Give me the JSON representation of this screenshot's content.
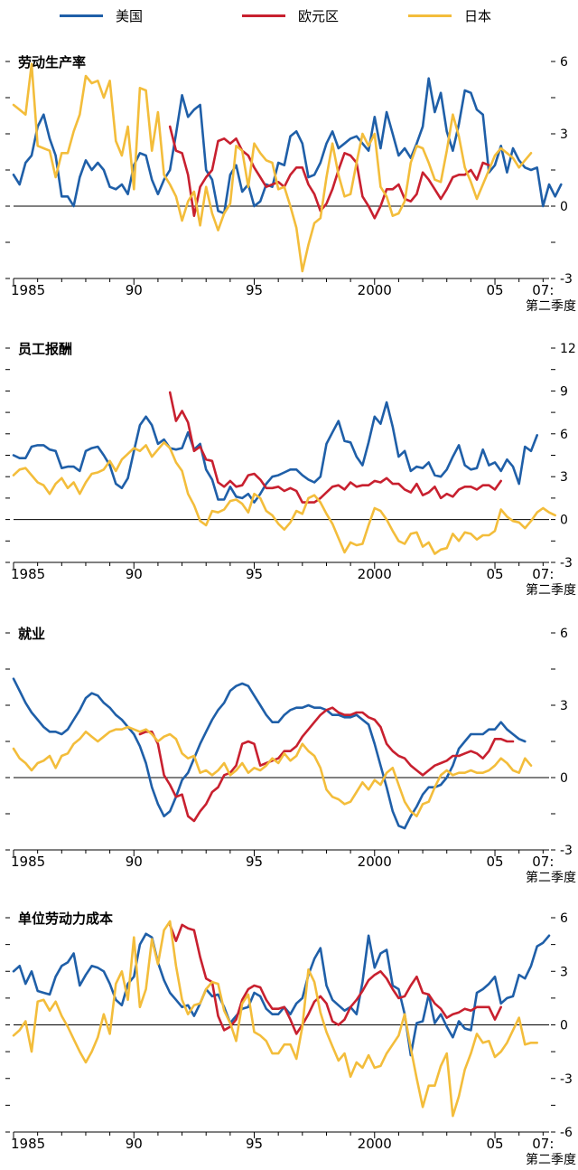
{
  "legend": [
    {
      "label": "美国",
      "color": "#1f5fa8"
    },
    {
      "label": "欧元区",
      "color": "#c8202f"
    },
    {
      "label": "日本",
      "color": "#f3bd3b"
    }
  ],
  "x_tick_labels": [
    "1985",
    "90",
    "95",
    "2000",
    "05",
    "07:"
  ],
  "x_end_note": "第二季度",
  "chart_data": [
    {
      "type": "line",
      "title": "劳动生产率",
      "ylim": [
        -3,
        6
      ],
      "y_tick_labels": [
        "6",
        "3",
        "0",
        "-3"
      ],
      "x_start": 1985.0,
      "x_step": 0.25,
      "series": [
        {
          "name": "美国",
          "start": 1985.0,
          "values": [
            1.3,
            0.9,
            1.8,
            2.1,
            3.3,
            3.8,
            2.8,
            2.1,
            0.4,
            0.4,
            0.0,
            1.2,
            1.9,
            1.5,
            1.8,
            1.5,
            0.8,
            0.7,
            0.9,
            0.5,
            1.7,
            2.2,
            2.1,
            1.1,
            0.5,
            1.1,
            1.5,
            3.0,
            4.6,
            3.7,
            4.0,
            4.2,
            1.5,
            1.1,
            -0.2,
            -0.3,
            1.3,
            1.7,
            0.6,
            0.9,
            0.0,
            0.2,
            0.9,
            0.8,
            1.8,
            1.7,
            2.9,
            3.1,
            2.6,
            1.2,
            1.3,
            1.8,
            2.6,
            3.1,
            2.4,
            2.6,
            2.8,
            2.9,
            2.6,
            2.3,
            3.7,
            2.4,
            3.9,
            3.0,
            2.1,
            2.4,
            2.0,
            2.6,
            3.3,
            5.3,
            3.9,
            4.7,
            3.1,
            2.3,
            3.4,
            4.8,
            4.7,
            4.0,
            3.8,
            1.4,
            1.7,
            2.5,
            1.4,
            2.4,
            1.9,
            1.6,
            1.5,
            1.6,
            0.0,
            0.9,
            0.4,
            0.9
          ]
        },
        {
          "name": "欧元区",
          "start": 1991.5,
          "values": [
            3.3,
            2.3,
            2.2,
            1.3,
            -0.4,
            0.8,
            1.2,
            1.5,
            2.7,
            2.8,
            2.6,
            2.8,
            2.3,
            2.1,
            1.6,
            1.2,
            0.8,
            0.9,
            1.0,
            0.8,
            1.3,
            1.6,
            1.6,
            0.9,
            0.5,
            -0.2,
            0.1,
            0.7,
            1.5,
            2.2,
            2.1,
            1.8,
            0.4,
            0.0,
            -0.5,
            0.0,
            0.7,
            0.7,
            0.9,
            0.3,
            0.2,
            0.5,
            1.4,
            1.1,
            0.7,
            0.3,
            0.7,
            1.2,
            1.3,
            1.3,
            1.5,
            1.1,
            1.8,
            1.7
          ]
        },
        {
          "name": "日本",
          "start": 1985.0,
          "values": [
            4.2,
            4.0,
            3.8,
            5.9,
            2.5,
            2.4,
            2.3,
            1.2,
            2.2,
            2.2,
            3.1,
            3.8,
            5.4,
            5.1,
            5.2,
            4.5,
            5.2,
            2.7,
            2.1,
            3.3,
            0.7,
            4.9,
            4.8,
            2.3,
            3.9,
            1.3,
            0.9,
            0.4,
            -0.6,
            0.2,
            0.6,
            -0.8,
            0.8,
            -0.3,
            -1.0,
            -0.3,
            0.1,
            2.5,
            2.3,
            0.8,
            2.6,
            2.2,
            1.9,
            1.8,
            0.7,
            0.8,
            0.0,
            -0.9,
            -2.7,
            -1.6,
            -0.7,
            -0.5,
            1.2,
            2.6,
            1.3,
            0.4,
            0.5,
            1.8,
            3.0,
            2.5,
            3.0,
            0.8,
            0.4,
            -0.4,
            -0.3,
            0.2,
            1.8,
            2.5,
            2.4,
            1.8,
            1.1,
            1.0,
            2.3,
            3.8,
            2.9,
            1.6,
            1.0,
            0.3,
            0.9,
            1.5,
            2.1,
            2.4,
            2.2,
            2.0,
            1.6,
            1.9,
            2.2
          ]
        }
      ]
    },
    {
      "type": "line",
      "title": "员工报酬",
      "ylim": [
        -3,
        12
      ],
      "y_tick_labels": [
        "12",
        "9",
        "6",
        "3",
        "0",
        "-3"
      ],
      "x_start": 1985.0,
      "x_step": 0.25,
      "series": [
        {
          "name": "美国",
          "start": 1985.0,
          "values": [
            4.5,
            4.3,
            4.3,
            5.1,
            5.2,
            5.2,
            4.9,
            4.8,
            3.6,
            3.7,
            3.7,
            3.4,
            4.8,
            5.0,
            5.1,
            4.5,
            3.8,
            2.5,
            2.2,
            2.9,
            4.8,
            6.6,
            7.2,
            6.6,
            5.3,
            5.6,
            5.0,
            4.9,
            5.0,
            6.1,
            4.9,
            5.3,
            3.5,
            2.8,
            1.4,
            1.4,
            2.3,
            1.6,
            1.5,
            1.8,
            1.2,
            1.8,
            2.5,
            3.0,
            3.1,
            3.3,
            3.5,
            3.5,
            3.1,
            2.8,
            2.6,
            3.0,
            5.3,
            6.1,
            6.9,
            5.5,
            5.4,
            4.4,
            3.8,
            5.4,
            7.2,
            6.7,
            8.2,
            6.5,
            4.4,
            4.8,
            3.4,
            3.7,
            3.6,
            4.0,
            3.1,
            3.0,
            3.5,
            4.4,
            5.2,
            3.8,
            3.5,
            3.6,
            4.9,
            3.8,
            4.0,
            3.4,
            4.2,
            3.7,
            2.5,
            5.1,
            4.8,
            5.9
          ]
        },
        {
          "name": "欧元区",
          "start": 1991.5,
          "values": [
            8.9,
            6.9,
            7.6,
            6.8,
            4.8,
            5.1,
            4.2,
            4.1,
            2.6,
            2.3,
            2.7,
            2.3,
            2.4,
            3.1,
            3.2,
            2.8,
            2.2,
            2.2,
            2.3,
            2.0,
            2.2,
            2.0,
            1.2,
            1.2,
            1.2,
            1.5,
            1.9,
            2.3,
            2.4,
            2.1,
            2.6,
            2.3,
            2.4,
            2.4,
            2.7,
            2.6,
            2.9,
            2.5,
            2.5,
            2.1,
            1.9,
            2.5,
            1.7,
            1.9,
            2.3,
            1.5,
            1.8,
            1.6,
            2.1,
            2.3,
            2.3,
            2.1,
            2.4,
            2.4,
            2.1,
            2.7
          ]
        },
        {
          "name": "日本",
          "start": 1985.0,
          "values": [
            3.1,
            3.5,
            3.6,
            3.1,
            2.6,
            2.4,
            1.8,
            2.5,
            2.9,
            2.2,
            2.6,
            1.8,
            2.6,
            3.2,
            3.3,
            3.5,
            4.1,
            3.4,
            4.2,
            4.6,
            5.0,
            4.8,
            5.2,
            4.4,
            4.9,
            5.4,
            5.0,
            4.0,
            3.4,
            1.8,
            1.0,
            -0.1,
            -0.4,
            0.6,
            0.5,
            0.7,
            1.3,
            1.4,
            1.1,
            0.5,
            1.8,
            1.5,
            0.6,
            0.3,
            -0.3,
            -0.7,
            -0.2,
            0.6,
            0.4,
            1.5,
            1.7,
            1.2,
            0.4,
            -0.3,
            -1.3,
            -2.3,
            -1.6,
            -1.8,
            -1.7,
            -0.4,
            0.8,
            0.6,
            0.0,
            -0.8,
            -1.5,
            -1.7,
            -1.0,
            -0.9,
            -1.9,
            -1.6,
            -2.4,
            -2.1,
            -2.0,
            -1.0,
            -1.5,
            -0.9,
            -1.0,
            -1.4,
            -1.1,
            -1.1,
            -0.8,
            0.7,
            0.2,
            -0.1,
            -0.2,
            -0.6,
            -0.1,
            0.5,
            0.8,
            0.5,
            0.3
          ]
        }
      ]
    },
    {
      "type": "line",
      "title": "就业",
      "ylim": [
        -3,
        6
      ],
      "y_tick_labels": [
        "6",
        "3",
        "0",
        "-3"
      ],
      "x_start": 1985.0,
      "x_step": 0.25,
      "series": [
        {
          "name": "美国",
          "start": 1985.0,
          "values": [
            4.1,
            3.6,
            3.1,
            2.7,
            2.4,
            2.1,
            1.9,
            1.9,
            1.8,
            2.0,
            2.4,
            2.8,
            3.3,
            3.5,
            3.4,
            3.1,
            2.9,
            2.6,
            2.4,
            2.1,
            1.8,
            1.3,
            0.6,
            -0.4,
            -1.1,
            -1.6,
            -1.4,
            -0.8,
            -0.1,
            0.2,
            0.8,
            1.4,
            1.9,
            2.4,
            2.8,
            3.1,
            3.6,
            3.8,
            3.9,
            3.8,
            3.4,
            3.0,
            2.6,
            2.3,
            2.3,
            2.6,
            2.8,
            2.9,
            2.9,
            3.0,
            2.9,
            2.9,
            2.8,
            2.6,
            2.6,
            2.5,
            2.5,
            2.6,
            2.4,
            2.2,
            1.4,
            0.5,
            -0.4,
            -1.4,
            -2.0,
            -2.1,
            -1.6,
            -1.2,
            -0.7,
            -0.4,
            -0.4,
            -0.3,
            0.0,
            0.5,
            1.2,
            1.5,
            1.8,
            1.8,
            1.8,
            2.0,
            2.0,
            2.3,
            2.0,
            1.8,
            1.6,
            1.5
          ]
        },
        {
          "name": "欧元区",
          "start": 1990.25,
          "values": [
            1.8,
            1.9,
            1.9,
            1.4,
            0.1,
            -0.3,
            -0.8,
            -0.7,
            -1.6,
            -1.8,
            -1.4,
            -1.1,
            -0.6,
            -0.4,
            0.1,
            0.2,
            0.5,
            1.4,
            1.5,
            1.4,
            0.5,
            0.6,
            0.7,
            0.8,
            1.1,
            1.1,
            1.3,
            1.7,
            2.0,
            2.3,
            2.6,
            2.8,
            2.9,
            2.7,
            2.6,
            2.6,
            2.7,
            2.7,
            2.5,
            2.4,
            2.1,
            1.4,
            1.1,
            0.9,
            0.8,
            0.5,
            0.3,
            0.1,
            0.3,
            0.5,
            0.6,
            0.7,
            0.9,
            0.9,
            1.0,
            1.1,
            1.0,
            0.8,
            1.1,
            1.6,
            1.6,
            1.5,
            1.5
          ]
        },
        {
          "name": "日本",
          "start": 1985.0,
          "values": [
            1.2,
            0.8,
            0.6,
            0.3,
            0.6,
            0.7,
            0.9,
            0.4,
            0.9,
            1.0,
            1.4,
            1.6,
            1.9,
            1.7,
            1.5,
            1.7,
            1.9,
            2.0,
            2.0,
            2.1,
            2.0,
            1.9,
            2.0,
            1.8,
            1.5,
            1.7,
            1.8,
            1.6,
            1.0,
            0.8,
            0.9,
            0.2,
            0.3,
            0.1,
            0.3,
            0.6,
            0.1,
            0.3,
            0.6,
            0.2,
            0.4,
            0.3,
            0.5,
            0.8,
            0.6,
            1.0,
            0.7,
            0.9,
            1.4,
            1.1,
            0.9,
            0.4,
            -0.5,
            -0.8,
            -0.9,
            -1.1,
            -1.0,
            -0.6,
            -0.2,
            -0.5,
            -0.1,
            -0.3,
            0.2,
            0.4,
            -0.3,
            -1.0,
            -1.4,
            -1.6,
            -1.1,
            -1.0,
            -0.4,
            0.1,
            0.3,
            0.1,
            0.2,
            0.2,
            0.3,
            0.2,
            0.2,
            0.3,
            0.5,
            0.8,
            0.6,
            0.3,
            0.2,
            0.8,
            0.5
          ]
        }
      ]
    },
    {
      "type": "line",
      "title": "单位劳动力成本",
      "ylim": [
        -6,
        6
      ],
      "y_tick_labels": [
        "6",
        "3",
        "0",
        "-3",
        "-6"
      ],
      "x_start": 1985.0,
      "x_step": 0.25,
      "series": [
        {
          "name": "美国",
          "start": 1985.0,
          "values": [
            3.0,
            3.3,
            2.3,
            3.0,
            1.9,
            1.8,
            1.7,
            2.7,
            3.3,
            3.5,
            4.0,
            2.2,
            2.8,
            3.3,
            3.2,
            3.0,
            2.3,
            1.4,
            1.1,
            2.3,
            2.7,
            4.5,
            5.1,
            4.9,
            3.5,
            2.5,
            1.8,
            1.4,
            1.0,
            1.1,
            0.5,
            1.2,
            2.0,
            1.6,
            1.7,
            1.0,
            0.1,
            0.5,
            0.9,
            1.0,
            1.8,
            1.6,
            0.9,
            0.6,
            0.6,
            1.0,
            0.6,
            1.2,
            1.5,
            2.8,
            3.7,
            4.3,
            2.2,
            1.4,
            1.1,
            0.8,
            1.0,
            0.6,
            2.4,
            5.0,
            3.2,
            4.0,
            4.2,
            2.2,
            2.0,
            0.6,
            -1.7,
            0.1,
            0.2,
            1.7,
            0.1,
            0.6,
            -0.1,
            -0.7,
            0.2,
            -0.2,
            -0.3,
            1.8,
            2.0,
            2.3,
            2.7,
            1.2,
            1.5,
            1.6,
            2.8,
            2.6,
            3.3,
            4.4,
            4.6,
            5.0
          ]
        },
        {
          "name": "欧元区",
          "start": 1991.5,
          "values": [
            5.6,
            4.7,
            5.6,
            5.4,
            5.3,
            3.8,
            2.6,
            2.4,
            0.5,
            -0.3,
            -0.1,
            0.3,
            1.4,
            2.0,
            2.2,
            2.1,
            1.4,
            0.9,
            0.9,
            1.0,
            0.3,
            -0.5,
            0.0,
            0.6,
            1.3,
            1.6,
            1.2,
            0.2,
            0.0,
            0.3,
            1.0,
            1.4,
            1.9,
            2.5,
            2.8,
            3.0,
            2.6,
            2.0,
            1.5,
            1.6,
            2.2,
            2.7,
            1.8,
            1.7,
            1.2,
            0.9,
            0.4,
            0.6,
            0.7,
            0.9,
            0.8,
            1.0,
            1.0,
            1.0,
            0.3,
            1.0
          ]
        },
        {
          "name": "日本",
          "start": 1985.0,
          "values": [
            -0.6,
            -0.3,
            0.2,
            -1.5,
            1.3,
            1.4,
            0.8,
            1.3,
            0.5,
            -0.1,
            -0.8,
            -1.5,
            -2.1,
            -1.5,
            -0.7,
            0.6,
            -0.5,
            2.3,
            3.0,
            1.4,
            4.9,
            1.0,
            2.0,
            4.8,
            3.4,
            5.3,
            5.8,
            3.3,
            1.4,
            0.6,
            1.1,
            1.2,
            2.0,
            2.4,
            2.3,
            0.8,
            0.1,
            -0.9,
            1.2,
            1.7,
            -0.4,
            -0.6,
            -0.9,
            -1.6,
            -1.6,
            -1.1,
            -1.1,
            -1.9,
            -0.1,
            3.1,
            2.4,
            0.7,
            -0.4,
            -1.2,
            -2.0,
            -1.6,
            -2.9,
            -2.1,
            -2.4,
            -1.7,
            -2.4,
            -2.3,
            -1.6,
            -1.1,
            -0.6,
            0.6,
            -1.3,
            -3.0,
            -4.6,
            -3.4,
            -3.4,
            -2.3,
            -1.6,
            -5.1,
            -4.0,
            -2.5,
            -1.6,
            -0.5,
            -1.0,
            -0.9,
            -1.8,
            -1.5,
            -1.0,
            -0.3,
            0.4,
            -1.1,
            -1.0,
            -1.0
          ]
        }
      ]
    }
  ]
}
